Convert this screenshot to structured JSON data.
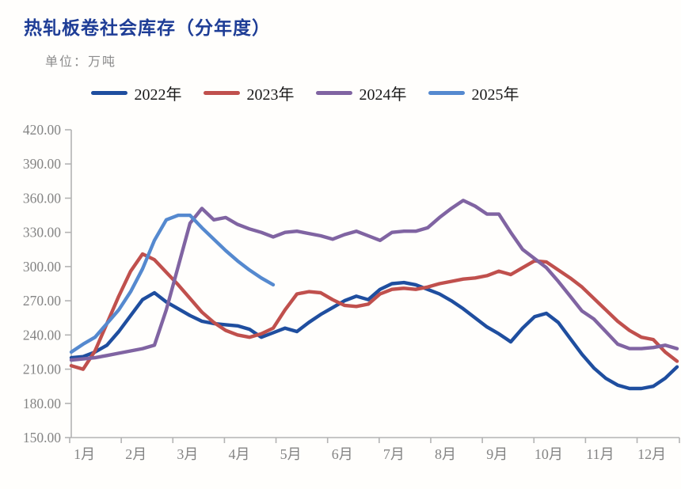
{
  "header": {
    "title": "热轧板卷社会库存（分年度）",
    "unit_label": "单位：万吨"
  },
  "colors": {
    "title": "#1e3d96",
    "subtitle_gray": "#8c8c8c",
    "axis_line": "#b3b3b3",
    "axis_text": "#848484"
  },
  "chart_data": {
    "type": "line",
    "title": "热轧板卷社会库存（分年度）",
    "ylabel": "万吨",
    "x_unit": "week_of_year",
    "x_axis": {
      "labels": [
        "1月",
        "2月",
        "3月",
        "4月",
        "5月",
        "6月",
        "7月",
        "8月",
        "9月",
        "10月",
        "11月",
        "12月"
      ]
    },
    "y_axis": {
      "min": 150,
      "max": 420,
      "step": 30,
      "tick_labels": [
        "150.00",
        "180.00",
        "210.00",
        "240.00",
        "270.00",
        "300.00",
        "330.00",
        "360.00",
        "390.00",
        "420.00"
      ]
    },
    "grid": false,
    "legend_position": "top",
    "series": [
      {
        "name": "2022年",
        "color": "#1f4e9f",
        "values": [
          220,
          221,
          225,
          231,
          243,
          257,
          271,
          277,
          269,
          263,
          257,
          252,
          250,
          249,
          248,
          245,
          238,
          242,
          246,
          243,
          251,
          258,
          264,
          270,
          274,
          271,
          280,
          285,
          286,
          284,
          280,
          276,
          270,
          263,
          255,
          247,
          241,
          234,
          246,
          256,
          259,
          251,
          237,
          223,
          211,
          202,
          196,
          193,
          193,
          195,
          202,
          212
        ]
      },
      {
        "name": "2023年",
        "color": "#c0504d",
        "values": [
          213,
          210,
          226,
          250,
          274,
          296,
          311,
          306,
          295,
          284,
          272,
          260,
          251,
          244,
          240,
          238,
          241,
          246,
          262,
          276,
          278,
          277,
          271,
          266,
          265,
          267,
          276,
          280,
          281,
          280,
          282,
          285,
          287,
          289,
          290,
          292,
          296,
          293,
          299,
          305,
          304,
          297,
          290,
          282,
          272,
          262,
          252,
          244,
          238,
          236,
          225,
          217
        ]
      },
      {
        "name": "2024年",
        "color": "#8064a2",
        "values": [
          218,
          219,
          220,
          222,
          224,
          226,
          228,
          231,
          262,
          300,
          338,
          351,
          341,
          343,
          337,
          333,
          330,
          326,
          330,
          331,
          329,
          327,
          324,
          328,
          331,
          327,
          323,
          330,
          331,
          331,
          334,
          343,
          351,
          358,
          353,
          346,
          346,
          330,
          315,
          307,
          299,
          287,
          274,
          261,
          254,
          243,
          232,
          228,
          228,
          229,
          231,
          228
        ]
      },
      {
        "name": "2025年",
        "color": "#5589cf",
        "values": [
          225,
          232,
          238,
          250,
          262,
          278,
          298,
          323,
          341,
          345,
          345,
          334,
          324,
          314,
          305,
          297,
          290,
          284
        ]
      }
    ]
  }
}
